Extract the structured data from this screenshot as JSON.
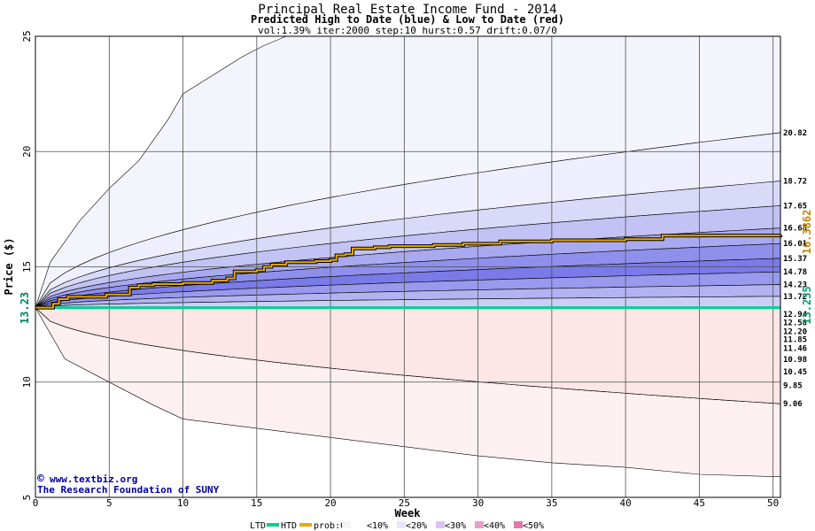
{
  "chart_data": {
    "type": "area",
    "title": "Principal Real Estate Income Fund - 2014",
    "subtitle": "Predicted High to Date (blue) &  Low to Date (red)",
    "params": "vol:1.39% iter:2000 step:10 hurst:0.57 drift:0.07/0",
    "xlabel": "Week",
    "ylabel": "Price ($)",
    "xlim": [
      0,
      50.5
    ],
    "ylim": [
      5,
      25
    ],
    "xticks": [
      0,
      5,
      10,
      15,
      20,
      25,
      30,
      35,
      40,
      45,
      50
    ],
    "yticks": [
      5,
      10,
      15,
      20,
      25
    ],
    "grid": true,
    "start_value": "13.23",
    "start_price": 13.23,
    "htd_value": "16.3862",
    "ltd_value": "13.235",
    "credit_line1": "www.textbiz.org",
    "credit_line2": "The Research Foundation of SUNY",
    "copyright_symbol": "©",
    "upper_bands": [
      {
        "end_label": "20.82",
        "end_value": 20.82,
        "fill": "#eeeefc"
      },
      {
        "end_label": "18.72",
        "end_value": 18.72,
        "fill": "#d9d9f8"
      },
      {
        "end_label": "17.65",
        "end_value": 17.65,
        "fill": "#c2c2f4"
      },
      {
        "end_label": "16.68",
        "end_value": 16.68,
        "fill": "#a9a9f0"
      },
      {
        "end_label": "16.01",
        "end_value": 16.01,
        "fill": "#8f8fec"
      },
      {
        "end_label": "15.37",
        "end_value": 15.37,
        "fill": "#7a7ae8"
      },
      {
        "end_label": "14.78",
        "end_value": 14.78,
        "fill": "#9999ee"
      },
      {
        "end_label": "14.23",
        "end_value": 14.23,
        "fill": "#b3b3f2"
      },
      {
        "end_label": "13.72",
        "end_value": 13.72,
        "fill": "#cdcdf6"
      }
    ],
    "lower_bands": [
      {
        "end_label": "12.94",
        "end_value": 12.94,
        "fill": "#fbe2e2"
      },
      {
        "end_label": "12.58",
        "end_value": 12.58,
        "fill": "#f9caca"
      },
      {
        "end_label": "12.20",
        "end_value": 12.2,
        "fill": "#f7b0b0"
      },
      {
        "end_label": "11.85",
        "end_value": 11.85,
        "fill": "#f59898"
      },
      {
        "end_label": "11.46",
        "end_value": 11.46,
        "fill": "#f38080"
      },
      {
        "end_label": "10.98",
        "end_value": 10.98,
        "fill": "#f59494"
      },
      {
        "end_label": "10.45",
        "end_value": 10.45,
        "fill": "#f8b4b4"
      },
      {
        "end_label": "9.85",
        "end_value": 9.85,
        "fill": "#fbd3d3"
      },
      {
        "end_label": "9.06",
        "end_value": 9.06,
        "fill": "#fde6e6"
      }
    ],
    "outer_upper": {
      "points": [
        [
          0,
          13.23
        ],
        [
          1,
          15.2
        ],
        [
          3,
          17.0
        ],
        [
          5,
          18.4
        ],
        [
          7,
          19.6
        ],
        [
          9,
          21.4
        ],
        [
          10,
          22.5
        ],
        [
          12,
          23.3
        ],
        [
          14,
          24.1
        ],
        [
          15.5,
          24.6
        ],
        [
          17,
          25
        ]
      ],
      "fill": "#f4f4fd"
    },
    "outer_lower": {
      "points": [
        [
          0,
          13.23
        ],
        [
          2,
          11.0
        ],
        [
          5,
          10.0
        ],
        [
          8,
          9.0
        ],
        [
          10,
          8.4
        ],
        [
          15,
          8.0
        ],
        [
          20,
          7.6
        ],
        [
          25,
          7.2
        ],
        [
          30,
          6.8
        ],
        [
          35,
          6.5
        ],
        [
          40,
          6.3
        ],
        [
          45,
          6.0
        ],
        [
          50,
          5.9
        ]
      ],
      "fill": "#fdf0f0"
    },
    "htd_path": [
      [
        0,
        13.23
      ],
      [
        1.2,
        13.4
      ],
      [
        1.6,
        13.6
      ],
      [
        2.2,
        13.7
      ],
      [
        4.4,
        13.7
      ],
      [
        4.8,
        13.8
      ],
      [
        6,
        13.8
      ],
      [
        6.4,
        14.1
      ],
      [
        7,
        14.2
      ],
      [
        8,
        14.25
      ],
      [
        10,
        14.3
      ],
      [
        12,
        14.4
      ],
      [
        13,
        14.5
      ],
      [
        13.5,
        14.8
      ],
      [
        15,
        14.85
      ],
      [
        15.5,
        15.0
      ],
      [
        16,
        15.1
      ],
      [
        17,
        15.2
      ],
      [
        19,
        15.25
      ],
      [
        20,
        15.3
      ],
      [
        20.4,
        15.5
      ],
      [
        21,
        15.55
      ],
      [
        21.5,
        15.8
      ],
      [
        23,
        15.85
      ],
      [
        24,
        15.9
      ],
      [
        26,
        15.9
      ],
      [
        27,
        15.95
      ],
      [
        29,
        16.0
      ],
      [
        31,
        16.0
      ],
      [
        31.5,
        16.1
      ],
      [
        35,
        16.15
      ],
      [
        40,
        16.2
      ],
      [
        42,
        16.2
      ],
      [
        42.5,
        16.35
      ],
      [
        45,
        16.36
      ],
      [
        50.5,
        16.39
      ]
    ],
    "ltd_level": 13.23,
    "legend": {
      "ltd_label": "LTD",
      "htd_label": "HTD",
      "prob_label": "prob:0%",
      "items": [
        {
          "label": "<10%",
          "color": "#ffffff"
        },
        {
          "label": "<20%",
          "color": "#e6e6fa"
        },
        {
          "label": "<30%",
          "color": "#d7c4f0"
        },
        {
          "label": "<40%",
          "color": "#e69fc8"
        },
        {
          "label": "<50%",
          "color": "#e07aa8"
        }
      ],
      "colors": {
        "ltd": "#00d090",
        "htd": "#e8a800",
        "prob0": "#f4f4f4"
      }
    }
  }
}
